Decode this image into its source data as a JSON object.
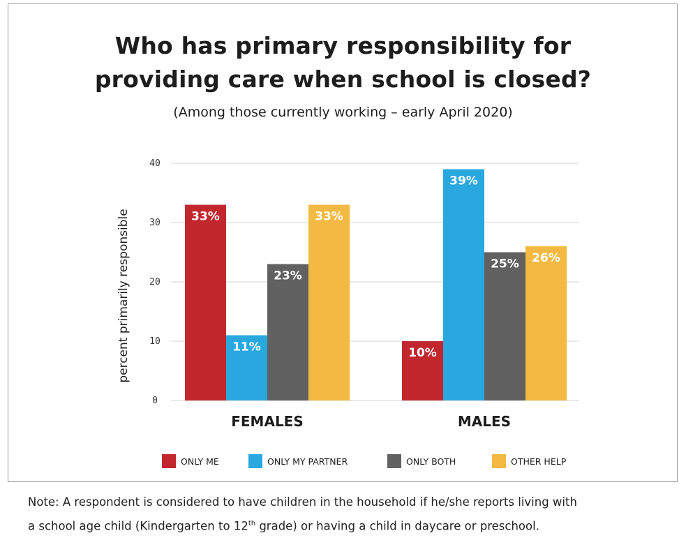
{
  "title_line1": "Who has primary responsibility for",
  "title_line2": "providing care when school is closed?",
  "subtitle": "(Among those currently working – early April 2020)",
  "note": {
    "line1": "Note: A respondent is considered to have children in the household if he/she reports living with",
    "line2_pre": "a school age child (Kindergarten to 12",
    "line2_sup": "th",
    "line2_post": " grade) or having a child in daycare or preschool."
  },
  "colors": {
    "only_me": "#c1272d",
    "only_my_partner": "#29a8e0",
    "only_both": "#616161",
    "other_help": "#f4b942"
  },
  "chart_data": {
    "type": "bar",
    "categories": [
      "FEMALES",
      "MALES"
    ],
    "series": [
      {
        "name": "ONLY ME",
        "values": [
          33,
          10
        ],
        "labels": [
          "33%",
          "10%"
        ],
        "color": "#c1272d"
      },
      {
        "name": "ONLY MY PARTNER",
        "values": [
          11,
          39
        ],
        "labels": [
          "11%",
          "39%"
        ],
        "color": "#29a8e0"
      },
      {
        "name": "ONLY BOTH",
        "values": [
          23,
          25
        ],
        "labels": [
          "23%",
          "25%"
        ],
        "color": "#616161"
      },
      {
        "name": "OTHER HELP",
        "values": [
          33,
          26
        ],
        "labels": [
          "33%",
          "26%"
        ],
        "color": "#f4b942"
      }
    ],
    "ylabel": "percent primarily responsible",
    "xlabel": "",
    "ylim": [
      0,
      40
    ],
    "yticks": [
      0,
      10,
      20,
      30,
      40
    ],
    "grid": true,
    "legend_position": "bottom"
  }
}
